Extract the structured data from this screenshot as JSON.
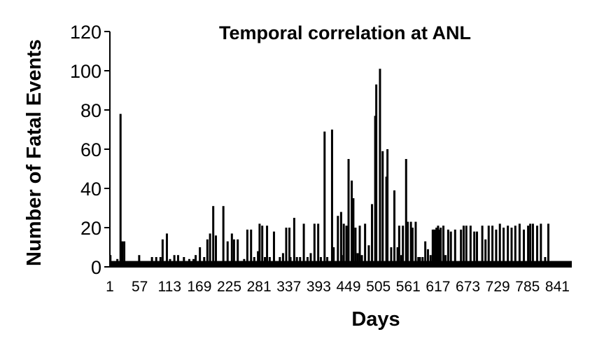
{
  "chart_data": {
    "type": "bar",
    "title": "Temporal correlation at ANL",
    "xlabel": "Days",
    "ylabel": "Number of Fatal Events",
    "ylim": [
      0,
      120
    ],
    "yticks": [
      0,
      20,
      40,
      60,
      80,
      100,
      120
    ],
    "xlim": [
      1,
      868
    ],
    "xticks": [
      "1",
      "57",
      "113",
      "169",
      "225",
      "281",
      "337",
      "393",
      "449",
      "505",
      "561",
      "617",
      "673",
      "729",
      "785",
      "841"
    ],
    "grid": false,
    "colors": {
      "bar": "#000000",
      "axis": "#000000"
    },
    "baseline": 3,
    "series": [
      {
        "x": [
          2,
          15,
          21,
          22,
          24,
          28,
          56,
          80,
          88,
          96,
          100,
          108,
          114,
          122,
          129,
          140,
          150,
          158,
          162,
          170,
          178,
          184,
          189,
          195,
          200,
          214,
          222,
          230,
          234,
          241,
          248,
          253,
          259,
          266,
          272,
          279,
          282,
          287,
          292,
          296,
          301,
          309,
          320,
          326,
          332,
          338,
          340,
          347,
          352,
          358,
          365,
          372,
          378,
          385,
          392,
          397,
          404,
          409,
          418,
          421,
          429,
          435,
          436,
          440,
          445,
          449,
          455,
          458,
          462,
          466,
          470,
          474,
          480,
          487,
          493,
          499,
          501,
          508,
          513,
          520,
          522,
          529,
          535,
          541,
          544,
          548,
          551,
          557,
          560,
          566,
          569,
          575,
          580,
          583,
          588,
          593,
          598,
          603,
          607,
          609,
          611,
          614,
          617,
          619,
          622,
          627,
          631,
          636,
          641,
          649,
          660,
          665,
          670,
          678,
          685,
          690,
          700,
          706,
          712,
          719,
          726,
          733,
          740,
          748,
          755,
          762,
          770,
          778,
          786,
          790,
          795,
          803,
          810,
          818,
          824
        ],
        "values": [
          6,
          4,
          78,
          13,
          13,
          13,
          6,
          5,
          5,
          5,
          14,
          17,
          4,
          6,
          6,
          5,
          4,
          4,
          6,
          10,
          5,
          14,
          17,
          31,
          16,
          31,
          13,
          17,
          14,
          14,
          3,
          4,
          19,
          19,
          5,
          8,
          22,
          21,
          5,
          21,
          5,
          18,
          5,
          7,
          20,
          20,
          5,
          25,
          5,
          5,
          22,
          5,
          7,
          22,
          22,
          5,
          69,
          5,
          70,
          10,
          26,
          28,
          6,
          22,
          21,
          55,
          44,
          35,
          20,
          7,
          21,
          6,
          22,
          11,
          32,
          77,
          93,
          101,
          59,
          46,
          60,
          10,
          39,
          10,
          21,
          6,
          21,
          55,
          23,
          23,
          20,
          23,
          5,
          5,
          5,
          13,
          9,
          6,
          19,
          19,
          19,
          20,
          21,
          19,
          20,
          21,
          6,
          19,
          18,
          19,
          19,
          21,
          21,
          21,
          18,
          18,
          21,
          14,
          21,
          21,
          19,
          22,
          20,
          21,
          20,
          21,
          22,
          19,
          21,
          22,
          22,
          21,
          22,
          5,
          22
        ]
      }
    ]
  }
}
